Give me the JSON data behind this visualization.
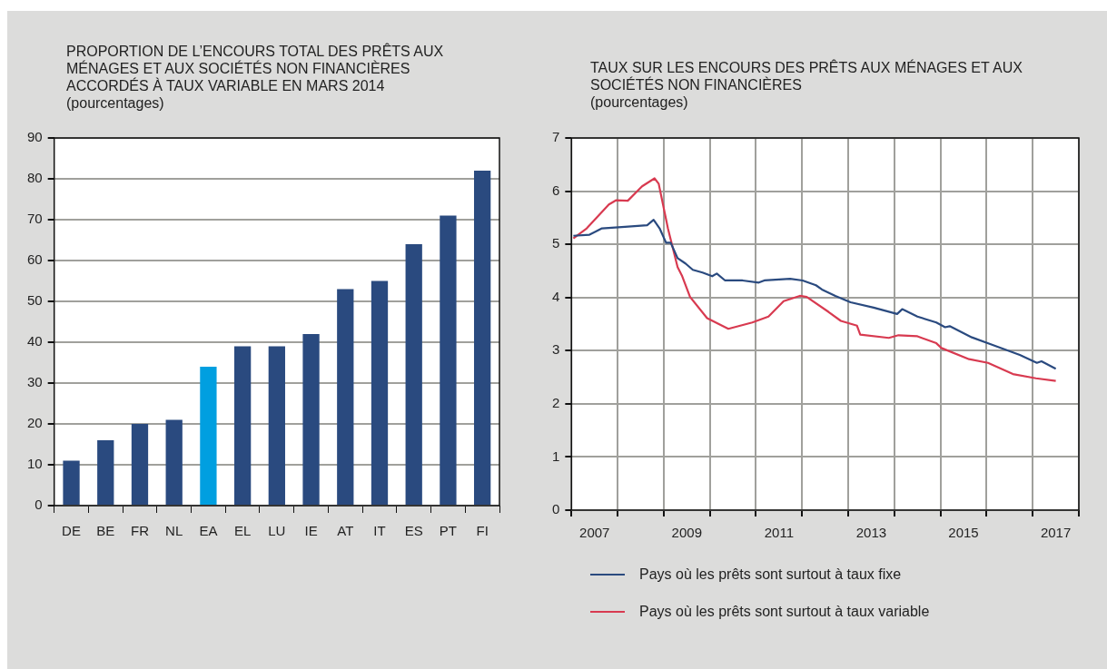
{
  "chart_data": [
    {
      "type": "bar",
      "title": "PROPORTION DE L’ENCOURS TOTAL DES PRÊTS AUX MÉNAGES ET AUX SOCIÉTÉS NON FINANCIÈRES ACCORDÉS À TAUX VARIABLE EN MARS 2014",
      "subtitle": "(pourcentages)",
      "categories": [
        "DE",
        "BE",
        "FR",
        "NL",
        "EA",
        "EL",
        "LU",
        "IE",
        "AT",
        "IT",
        "ES",
        "PT",
        "FI"
      ],
      "values": [
        11,
        16,
        20,
        21,
        34,
        39,
        39,
        42,
        53,
        55,
        64,
        71,
        82
      ],
      "colors": [
        "#2a4a7f",
        "#2a4a7f",
        "#2a4a7f",
        "#2a4a7f",
        "#009fe0",
        "#2a4a7f",
        "#2a4a7f",
        "#2a4a7f",
        "#2a4a7f",
        "#2a4a7f",
        "#2a4a7f",
        "#2a4a7f",
        "#2a4a7f"
      ],
      "ylim": [
        0,
        90
      ],
      "yticks": [
        0,
        10,
        20,
        30,
        40,
        50,
        60,
        70,
        80,
        90
      ],
      "grid": "y"
    },
    {
      "type": "line",
      "title": "TAUX SUR LES ENCOURS DES PRÊTS AUX MÉNAGES ET AUX SOCIÉTÉS NON FINANCIÈRES",
      "subtitle": "(pourcentages)",
      "xlim": [
        2007,
        2018
      ],
      "xticks": [
        {
          "value": 2007,
          "label": null
        },
        {
          "value": 2007.5,
          "label": "2007"
        },
        {
          "value": 2008,
          "label": null
        },
        {
          "value": 2009,
          "label": null
        },
        {
          "value": 2009.5,
          "label": "2009"
        },
        {
          "value": 2010,
          "label": null
        },
        {
          "value": 2011,
          "label": null
        },
        {
          "value": 2011.5,
          "label": "2011"
        },
        {
          "value": 2012,
          "label": null
        },
        {
          "value": 2013,
          "label": null
        },
        {
          "value": 2013.5,
          "label": "2013"
        },
        {
          "value": 2014,
          "label": null
        },
        {
          "value": 2015,
          "label": null
        },
        {
          "value": 2015.5,
          "label": "2015"
        },
        {
          "value": 2016,
          "label": null
        },
        {
          "value": 2017,
          "label": null
        },
        {
          "value": 2017.5,
          "label": "2017"
        },
        {
          "value": 2018,
          "label": null
        }
      ],
      "ylim": [
        0,
        7
      ],
      "yticks": [
        0,
        1,
        2,
        3,
        4,
        5,
        6,
        7
      ],
      "grid": true,
      "legend": "bottom",
      "marker": "none",
      "line_style": "solid",
      "series": [
        {
          "name": "Pays où les prêts sont surtout à taux fixe",
          "color": "#2a4a7f",
          "x": [
            2007.04,
            2007.39,
            2007.66,
            2008.16,
            2008.64,
            2008.78,
            2008.91,
            2009.05,
            2009.15,
            2009.3,
            2009.47,
            2009.63,
            2009.84,
            2010.05,
            2010.15,
            2010.33,
            2010.71,
            2011.06,
            2011.18,
            2011.74,
            2012.01,
            2012.3,
            2012.43,
            2012.72,
            2013.05,
            2013.55,
            2014.06,
            2014.17,
            2014.5,
            2014.91,
            2015.1,
            2015.2,
            2015.68,
            2016.09,
            2016.72,
            2017.09,
            2017.19,
            2017.5
          ],
          "values": [
            5.16,
            5.18,
            5.3,
            5.33,
            5.36,
            5.46,
            5.3,
            5.03,
            5.03,
            4.74,
            4.64,
            4.52,
            4.47,
            4.4,
            4.45,
            4.32,
            4.32,
            4.28,
            4.32,
            4.35,
            4.32,
            4.23,
            4.15,
            4.03,
            3.91,
            3.81,
            3.69,
            3.78,
            3.64,
            3.53,
            3.44,
            3.46,
            3.25,
            3.12,
            2.92,
            2.77,
            2.8,
            2.66
          ]
        },
        {
          "name": "Pays où les prêts sont surtout à taux variable",
          "color": "#d83a50",
          "x": [
            2007.04,
            2007.33,
            2007.81,
            2007.97,
            2008.22,
            2008.53,
            2008.8,
            2008.89,
            2009.09,
            2009.3,
            2009.4,
            2009.57,
            2009.94,
            2010.4,
            2010.92,
            2011.27,
            2011.6,
            2011.95,
            2012.1,
            2012.57,
            2012.84,
            2013.19,
            2013.26,
            2013.88,
            2014.09,
            2014.5,
            2014.91,
            2015.02,
            2015.62,
            2016.03,
            2016.57,
            2017.07,
            2017.5
          ],
          "values": [
            5.11,
            5.3,
            5.75,
            5.83,
            5.82,
            6.09,
            6.24,
            6.14,
            5.3,
            4.57,
            4.4,
            4.01,
            3.61,
            3.41,
            3.53,
            3.64,
            3.93,
            4.03,
            4.01,
            3.73,
            3.56,
            3.47,
            3.3,
            3.24,
            3.29,
            3.27,
            3.14,
            3.05,
            2.84,
            2.77,
            2.56,
            2.48,
            2.43
          ]
        }
      ]
    }
  ]
}
